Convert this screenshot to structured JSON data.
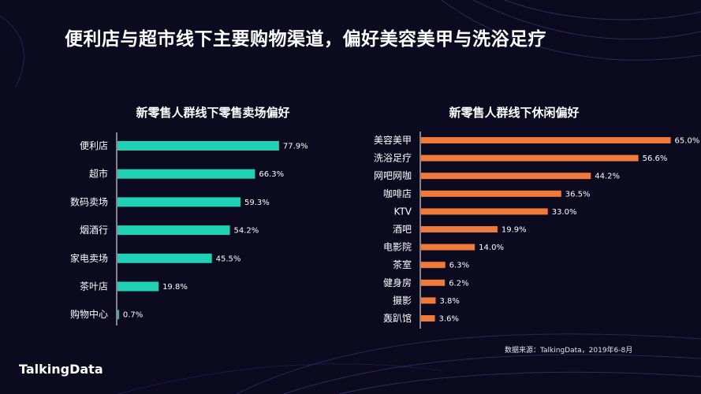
{
  "title": "便利店与超市线下主要购物渠道，偏好美容美甲与洗浴足疗",
  "source": "数据来源：TalkingData，2019年6-8月",
  "logo": "TalkingData",
  "colors": {
    "background": "#0b0a1e",
    "left_bar": "#1fd1b5",
    "right_bar": "#f07a3c",
    "axis": "#ffffff"
  },
  "chart_data": [
    {
      "type": "bar",
      "orientation": "horizontal",
      "title": "新零售人群线下零售卖场偏好",
      "categories": [
        "便利店",
        "超市",
        "数码卖场",
        "烟酒行",
        "家电卖场",
        "茶叶店",
        "购物中心"
      ],
      "values": [
        77.9,
        66.3,
        59.3,
        54.2,
        45.5,
        19.8,
        0.7
      ],
      "value_labels": [
        "77.9%",
        "66.3%",
        "59.3%",
        "54.2%",
        "45.5%",
        "19.8%",
        "0.7%"
      ],
      "unit": "%",
      "xlim": [
        0,
        100
      ]
    },
    {
      "type": "bar",
      "orientation": "horizontal",
      "title": "新零售人群线下休闲偏好",
      "categories": [
        "美容美甲",
        "洗浴足疗",
        "网吧网咖",
        "咖啡店",
        "KTV",
        "酒吧",
        "电影院",
        "茶室",
        "健身房",
        "摄影",
        "轰趴馆"
      ],
      "values": [
        65.0,
        56.6,
        44.2,
        36.5,
        33.0,
        19.9,
        14.0,
        6.3,
        6.2,
        3.8,
        3.6
      ],
      "value_labels": [
        "65.0%",
        "56.6%",
        "44.2%",
        "36.5%",
        "33.0%",
        "19.9%",
        "14.0%",
        "6.3%",
        "6.2%",
        "3.8%",
        "3.6%"
      ],
      "unit": "%",
      "xlim": [
        0,
        100
      ]
    }
  ]
}
